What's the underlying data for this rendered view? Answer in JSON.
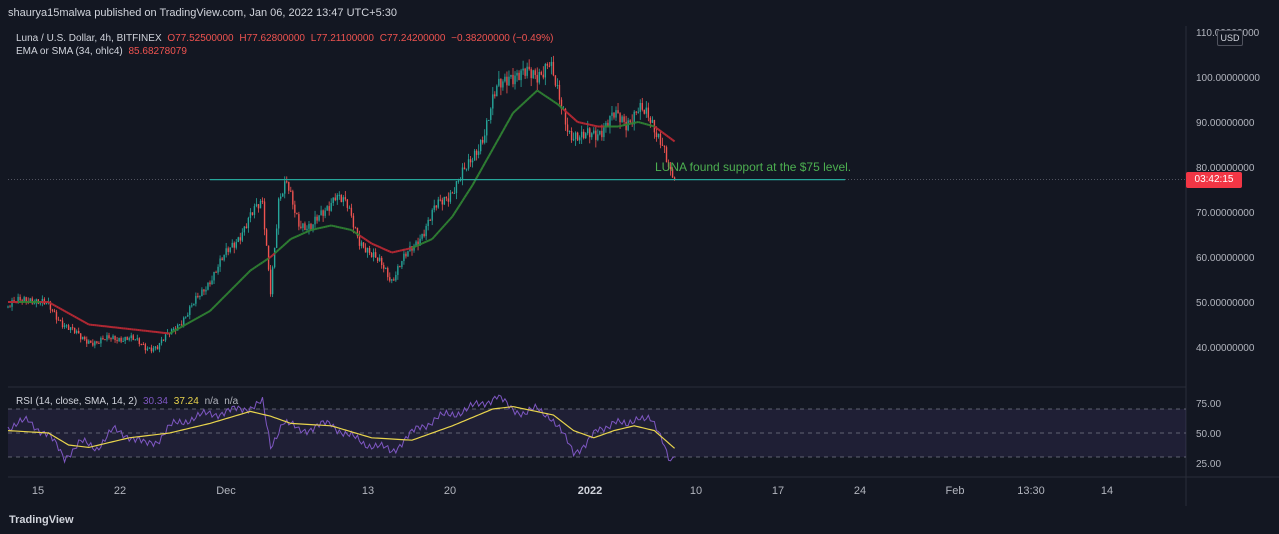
{
  "header": {
    "published": "shaurya15malwa published on TradingView.com, Jan 06, 2022 13:47 UTC+5:30"
  },
  "legend": {
    "symbol": "Luna / U.S. Dollar, 4h, BITFINEX",
    "o": "O77.52500000",
    "h": "H77.62800000",
    "l": "L77.21100000",
    "c": "C77.24200000",
    "chg": "−0.38200000 (−0.49%)",
    "ema_label": "EMA or SMA (34, ohlc4)",
    "ema_value": "85.68278079"
  },
  "rsi_legend": {
    "label": "RSI (14, close, SMA, 14, 2)",
    "rsi": "30.34",
    "sma": "37.24",
    "na1": "n/a",
    "na2": "n/a"
  },
  "annotation": "LUNA found support at the $75 level.",
  "price_axis": {
    "currency": "USD",
    "ticks": [
      "110.00000000",
      "100.00000000",
      "90.00000000",
      "80.00000000",
      "70.00000000",
      "60.00000000",
      "50.00000000",
      "40.00000000"
    ],
    "countdown": "03:42:15"
  },
  "rsi_axis": {
    "ticks": [
      "75.00",
      "50.00",
      "25.00"
    ]
  },
  "time_axis": {
    "labels": [
      "15",
      "22",
      "Dec",
      "13",
      "20",
      "2022",
      "10",
      "17",
      "24",
      "Feb",
      "13:30",
      "14"
    ]
  },
  "footer": {
    "brand": "TradingView"
  },
  "colors": {
    "bg": "#131722",
    "up": "#26a69a",
    "down": "#ef5350",
    "ma_above": "#b22833",
    "ma_below": "#2e7d32",
    "rsi": "#7e57c2",
    "rsi_ma": "#e8d44d",
    "annotation": "#4caf50",
    "support": "#26a69a"
  },
  "chart_data": {
    "type": "candlestick",
    "timeframe": "4h",
    "ylim": [
      35,
      110
    ],
    "support_level": 77.2,
    "ohlc_path": [
      [
        0,
        49
      ],
      [
        10,
        51
      ],
      [
        20,
        49
      ],
      [
        28,
        45
      ],
      [
        36,
        42
      ],
      [
        44,
        41
      ],
      [
        52,
        42
      ],
      [
        60,
        42
      ],
      [
        68,
        40
      ],
      [
        74,
        40
      ],
      [
        80,
        43
      ],
      [
        88,
        47
      ],
      [
        96,
        52
      ],
      [
        104,
        58
      ],
      [
        112,
        63
      ],
      [
        120,
        69
      ],
      [
        126,
        72
      ],
      [
        130,
        53
      ],
      [
        134,
        72
      ],
      [
        138,
        76
      ],
      [
        144,
        68
      ],
      [
        150,
        66
      ],
      [
        156,
        70
      ],
      [
        162,
        74
      ],
      [
        168,
        71
      ],
      [
        174,
        64
      ],
      [
        180,
        60
      ],
      [
        186,
        58
      ],
      [
        190,
        55
      ],
      [
        194,
        58
      ],
      [
        200,
        62
      ],
      [
        206,
        66
      ],
      [
        212,
        71
      ],
      [
        220,
        75
      ],
      [
        228,
        80
      ],
      [
        236,
        88
      ],
      [
        242,
        97
      ],
      [
        248,
        101
      ],
      [
        254,
        100
      ],
      [
        262,
        101
      ],
      [
        268,
        103
      ],
      [
        272,
        96
      ],
      [
        278,
        88
      ],
      [
        284,
        86
      ],
      [
        292,
        88
      ],
      [
        300,
        91
      ],
      [
        306,
        90
      ],
      [
        312,
        93
      ],
      [
        318,
        90
      ],
      [
        324,
        86
      ],
      [
        328,
        78
      ],
      [
        330,
        77.24
      ]
    ],
    "ma_path": [
      [
        0,
        50
      ],
      [
        20,
        50
      ],
      [
        40,
        45
      ],
      [
        60,
        44
      ],
      [
        80,
        43
      ],
      [
        100,
        48
      ],
      [
        120,
        57
      ],
      [
        130,
        60
      ],
      [
        140,
        64
      ],
      [
        150,
        66
      ],
      [
        160,
        67
      ],
      [
        170,
        66
      ],
      [
        180,
        63
      ],
      [
        190,
        61
      ],
      [
        200,
        62
      ],
      [
        210,
        64
      ],
      [
        220,
        69
      ],
      [
        230,
        76
      ],
      [
        240,
        84
      ],
      [
        250,
        92
      ],
      [
        262,
        97
      ],
      [
        272,
        94
      ],
      [
        282,
        90
      ],
      [
        292,
        89
      ],
      [
        302,
        89
      ],
      [
        312,
        90
      ],
      [
        320,
        89
      ],
      [
        330,
        85.68
      ]
    ],
    "rsi": {
      "levels": [
        70,
        50,
        30
      ],
      "rsi_path": [
        [
          0,
          55
        ],
        [
          10,
          60
        ],
        [
          20,
          48
        ],
        [
          28,
          30
        ],
        [
          36,
          42
        ],
        [
          44,
          38
        ],
        [
          52,
          52
        ],
        [
          60,
          48
        ],
        [
          68,
          40
        ],
        [
          74,
          44
        ],
        [
          80,
          55
        ],
        [
          90,
          62
        ],
        [
          100,
          66
        ],
        [
          110,
          68
        ],
        [
          120,
          72
        ],
        [
          126,
          75
        ],
        [
          130,
          38
        ],
        [
          136,
          60
        ],
        [
          144,
          52
        ],
        [
          152,
          55
        ],
        [
          160,
          58
        ],
        [
          168,
          48
        ],
        [
          176,
          42
        ],
        [
          184,
          38
        ],
        [
          190,
          35
        ],
        [
          196,
          44
        ],
        [
          204,
          55
        ],
        [
          212,
          62
        ],
        [
          220,
          66
        ],
        [
          228,
          70
        ],
        [
          236,
          76
        ],
        [
          242,
          80
        ],
        [
          248,
          72
        ],
        [
          256,
          66
        ],
        [
          262,
          70
        ],
        [
          268,
          65
        ],
        [
          274,
          50
        ],
        [
          280,
          35
        ],
        [
          286,
          40
        ],
        [
          292,
          52
        ],
        [
          300,
          60
        ],
        [
          306,
          55
        ],
        [
          312,
          65
        ],
        [
          318,
          60
        ],
        [
          324,
          45
        ],
        [
          328,
          28
        ],
        [
          330,
          30.34
        ]
      ],
      "ma_path": [
        [
          0,
          52
        ],
        [
          20,
          50
        ],
        [
          30,
          40
        ],
        [
          40,
          38
        ],
        [
          60,
          46
        ],
        [
          80,
          50
        ],
        [
          100,
          58
        ],
        [
          120,
          68
        ],
        [
          130,
          64
        ],
        [
          140,
          58
        ],
        [
          160,
          56
        ],
        [
          180,
          46
        ],
        [
          200,
          44
        ],
        [
          220,
          56
        ],
        [
          240,
          70
        ],
        [
          250,
          72
        ],
        [
          270,
          65
        ],
        [
          280,
          52
        ],
        [
          290,
          46
        ],
        [
          300,
          52
        ],
        [
          310,
          56
        ],
        [
          320,
          52
        ],
        [
          330,
          37.24
        ]
      ]
    }
  }
}
